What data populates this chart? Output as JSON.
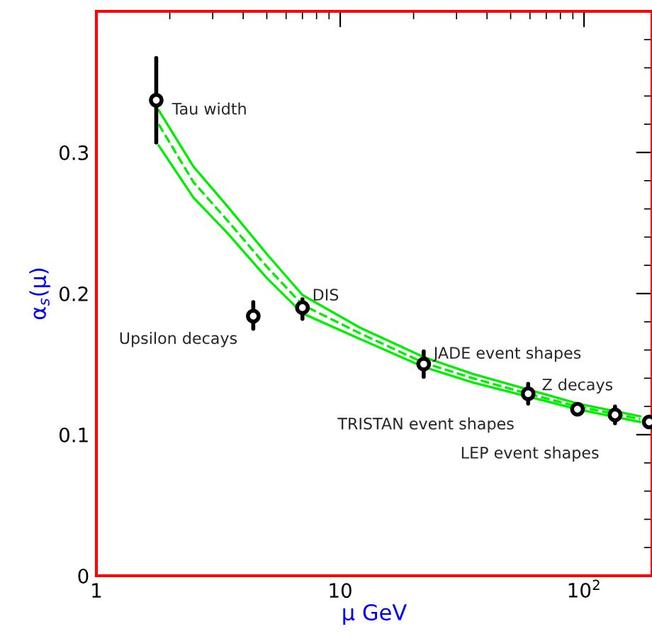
{
  "chart_data": {
    "type": "scatter",
    "xlabel": "μ GeV",
    "ylabel": "α$_{s}$(μ)",
    "log": "x",
    "xlim": [
      1,
      190
    ],
    "ylim": [
      0,
      0.4
    ],
    "xticks": [
      1,
      10,
      {
        "value": 100,
        "label": "10$^{2}$"
      }
    ],
    "yticks": [
      0,
      0.1,
      0.2,
      0.3
    ],
    "grid": false,
    "legend": false,
    "series": [
      {
        "type": "line",
        "color": "#00ee00",
        "line_style": "solid",
        "marker": "none",
        "x": [
          1.8,
          2.5,
          3.44,
          5,
          7,
          12,
          22,
          35,
          59,
          94,
          170
        ],
        "values": [
          0.33,
          0.29,
          0.262,
          0.228,
          0.199,
          0.176,
          0.155,
          0.143,
          0.132,
          0.122,
          0.113
        ]
      },
      {
        "type": "line",
        "color": "#00ee00",
        "line_style": "dashed",
        "marker": "none",
        "x": [
          1.8,
          2.5,
          3.44,
          5,
          7,
          12,
          22,
          35,
          59,
          94,
          170
        ],
        "values": [
          0.32,
          0.279,
          0.252,
          0.219,
          0.192,
          0.172,
          0.151,
          0.14,
          0.129,
          0.12,
          0.111
        ]
      },
      {
        "type": "line",
        "color": "#00ee00",
        "line_style": "solid",
        "marker": "none",
        "x": [
          1.8,
          2.5,
          3.44,
          5,
          7,
          12,
          22,
          35,
          59,
          94,
          170
        ],
        "values": [
          0.305,
          0.268,
          0.243,
          0.211,
          0.186,
          0.168,
          0.148,
          0.137,
          0.127,
          0.118,
          0.109
        ]
      },
      {
        "type": "scatter",
        "color": "#000000",
        "marker": "circle",
        "x": [
          1.76,
          4.4,
          7.0,
          22,
          59,
          94,
          134,
          185
        ],
        "values": [
          0.337,
          0.184,
          0.19,
          0.15,
          0.129,
          0.118,
          0.114,
          0.109
        ],
        "errors": [
          [
            0.307,
            0.367
          ],
          [
            0.175,
            0.194
          ],
          [
            0.182,
            0.196
          ],
          [
            0.141,
            0.159
          ],
          [
            0.122,
            0.136
          ],
          null,
          [
            0.108,
            0.12
          ],
          null
        ]
      }
    ],
    "annotations": [
      {
        "text": "Tau width",
        "x": 1.76,
        "y": 0.337
      },
      {
        "text": "Upsilon decays",
        "x": 4.4,
        "y": 0.184
      },
      {
        "text": "DIS",
        "x": 7.0,
        "y": 0.19
      },
      {
        "text": "JADE event shapes",
        "x": 22,
        "y": 0.15
      },
      {
        "text": "TRISTAN event shapes",
        "x": 59,
        "y": 0.129
      },
      {
        "text": "Z decays",
        "x": 94,
        "y": 0.118
      },
      {
        "text": "LEP event shapes",
        "x": 134,
        "y": 0.114
      }
    ]
  }
}
